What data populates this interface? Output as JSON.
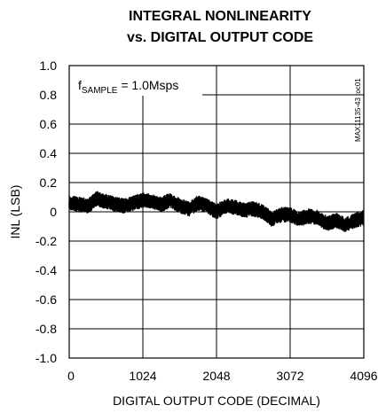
{
  "chart_data": {
    "type": "line",
    "title_line1": "INTEGRAL NONLINEARITY",
    "title_line2": "vs. DIGITAL OUTPUT CODE",
    "xlabel": "DIGITAL OUTPUT CODE (DECIMAL)",
    "ylabel": "INL (LSB)",
    "xlim": [
      0,
      4096
    ],
    "ylim": [
      -1.0,
      1.0
    ],
    "x_ticks": [
      0,
      1024,
      2048,
      3072,
      4096
    ],
    "x_tick_labels": [
      "0",
      "1024",
      "2048",
      "3072",
      "4096"
    ],
    "y_ticks": [
      1.0,
      0.8,
      0.6,
      0.4,
      0.2,
      0,
      -0.2,
      -0.4,
      -0.6,
      -0.8,
      -1.0
    ],
    "y_tick_labels": [
      "1.0",
      "0.8",
      "0.6",
      "0.4",
      "0.2",
      "0",
      "-0.2",
      "-0.4",
      "-0.6",
      "-0.8",
      "-1.0"
    ],
    "grid": true,
    "annotation": {
      "main": "f",
      "sub": "SAMPLE",
      "rest": " = 1.0Msps"
    },
    "side_tag": "MAX11135-43 toc01",
    "series": [
      {
        "x": [
          0,
          128,
          256,
          384,
          512,
          640,
          768,
          896,
          1024,
          1152,
          1280,
          1408,
          1536,
          1664,
          1792,
          1920,
          2048,
          2176,
          2304,
          2432,
          2560,
          2688,
          2816,
          2944,
          3072,
          3200,
          3328,
          3456,
          3584,
          3712,
          3840,
          3968,
          4096
        ],
        "y": [
          0.06,
          0.05,
          0.04,
          0.09,
          0.07,
          0.05,
          0.04,
          0.06,
          0.08,
          0.07,
          0.05,
          0.08,
          0.04,
          0.02,
          0.06,
          0.04,
          0.0,
          0.04,
          0.03,
          0.01,
          0.02,
          0.0,
          -0.05,
          -0.02,
          -0.02,
          -0.05,
          -0.03,
          -0.04,
          -0.08,
          -0.06,
          -0.09,
          -0.06,
          -0.04
        ],
        "band": 0.05
      }
    ]
  }
}
